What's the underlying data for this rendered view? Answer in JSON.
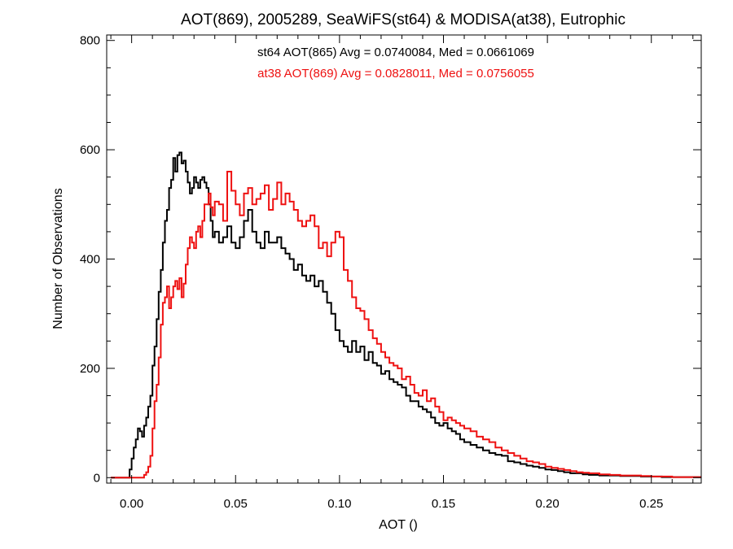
{
  "chart_data": {
    "type": "line",
    "title": "AOT(869), 2005289, SeaWiFS(st64) & MODISA(at38), Eutrophic",
    "xlabel": "AOT ()",
    "ylabel": "Number of Observations",
    "xlim": [
      -0.012,
      0.274
    ],
    "ylim": [
      -10,
      810
    ],
    "xticks": [
      0.0,
      0.05,
      0.1,
      0.15,
      0.2,
      0.25
    ],
    "xtick_labels": [
      "0.00",
      "0.05",
      "0.10",
      "0.15",
      "0.20",
      "0.25"
    ],
    "yticks": [
      0,
      200,
      400,
      600,
      800
    ],
    "ytick_labels": [
      "0",
      "200",
      "400",
      "600",
      "800"
    ],
    "grid": false,
    "annotations": [
      {
        "text": "st64 AOT(865) Avg = 0.0740084, Med = 0.0661069",
        "color": "#000000"
      },
      {
        "text": "at38 AOT(869) Avg = 0.0828011, Med = 0.0756055",
        "color": "#ee1111"
      }
    ],
    "series": [
      {
        "color": "#000000",
        "x": [
          -0.01,
          -0.002,
          -0.001,
          0.0,
          0.001,
          0.002,
          0.003,
          0.004,
          0.005,
          0.006,
          0.007,
          0.008,
          0.009,
          0.01,
          0.011,
          0.012,
          0.013,
          0.014,
          0.015,
          0.016,
          0.017,
          0.018,
          0.019,
          0.02,
          0.021,
          0.022,
          0.023,
          0.024,
          0.025,
          0.026,
          0.027,
          0.028,
          0.029,
          0.03,
          0.031,
          0.032,
          0.033,
          0.034,
          0.035,
          0.036,
          0.037,
          0.038,
          0.039,
          0.04,
          0.042,
          0.044,
          0.046,
          0.048,
          0.05,
          0.052,
          0.054,
          0.056,
          0.058,
          0.06,
          0.062,
          0.064,
          0.066,
          0.068,
          0.07,
          0.072,
          0.074,
          0.076,
          0.078,
          0.08,
          0.082,
          0.084,
          0.086,
          0.088,
          0.09,
          0.092,
          0.094,
          0.096,
          0.098,
          0.1,
          0.102,
          0.104,
          0.106,
          0.108,
          0.11,
          0.112,
          0.114,
          0.116,
          0.118,
          0.12,
          0.122,
          0.124,
          0.126,
          0.128,
          0.13,
          0.132,
          0.134,
          0.136,
          0.138,
          0.14,
          0.142,
          0.144,
          0.146,
          0.148,
          0.15,
          0.152,
          0.154,
          0.156,
          0.158,
          0.16,
          0.163,
          0.166,
          0.169,
          0.172,
          0.175,
          0.178,
          0.181,
          0.184,
          0.187,
          0.19,
          0.193,
          0.196,
          0.199,
          0.202,
          0.205,
          0.208,
          0.211,
          0.214,
          0.217,
          0.22,
          0.225,
          0.23,
          0.235,
          0.24,
          0.245,
          0.25,
          0.255,
          0.26,
          0.265,
          0.27
        ],
        "y": [
          0,
          0,
          15,
          35,
          55,
          70,
          90,
          85,
          75,
          95,
          110,
          130,
          150,
          205,
          240,
          290,
          340,
          380,
          430,
          470,
          490,
          530,
          545,
          585,
          560,
          590,
          595,
          575,
          580,
          560,
          540,
          520,
          530,
          550,
          540,
          530,
          545,
          550,
          540,
          530,
          500,
          470,
          440,
          450,
          430,
          440,
          460,
          430,
          420,
          440,
          470,
          490,
          450,
          430,
          420,
          450,
          430,
          430,
          440,
          420,
          410,
          400,
          380,
          390,
          370,
          360,
          370,
          350,
          360,
          340,
          320,
          300,
          270,
          250,
          240,
          230,
          250,
          230,
          240,
          215,
          230,
          210,
          205,
          190,
          195,
          180,
          175,
          170,
          165,
          150,
          140,
          140,
          130,
          125,
          120,
          110,
          100,
          95,
          100,
          90,
          85,
          80,
          70,
          65,
          60,
          55,
          50,
          45,
          42,
          40,
          30,
          28,
          25,
          22,
          20,
          18,
          15,
          14,
          12,
          10,
          8,
          8,
          6,
          5,
          4,
          4,
          3,
          3,
          2,
          2,
          1,
          1,
          1,
          1
        ]
      },
      {
        "color": "#ee1111",
        "x": [
          -0.01,
          0.005,
          0.006,
          0.007,
          0.008,
          0.009,
          0.01,
          0.011,
          0.012,
          0.013,
          0.014,
          0.015,
          0.016,
          0.017,
          0.018,
          0.019,
          0.02,
          0.021,
          0.022,
          0.023,
          0.024,
          0.025,
          0.026,
          0.027,
          0.028,
          0.029,
          0.03,
          0.031,
          0.032,
          0.033,
          0.034,
          0.035,
          0.036,
          0.037,
          0.038,
          0.039,
          0.04,
          0.042,
          0.044,
          0.046,
          0.048,
          0.05,
          0.052,
          0.054,
          0.056,
          0.058,
          0.06,
          0.062,
          0.064,
          0.066,
          0.068,
          0.07,
          0.072,
          0.074,
          0.076,
          0.078,
          0.08,
          0.082,
          0.084,
          0.086,
          0.088,
          0.09,
          0.092,
          0.094,
          0.096,
          0.098,
          0.1,
          0.102,
          0.104,
          0.106,
          0.108,
          0.11,
          0.112,
          0.114,
          0.116,
          0.118,
          0.12,
          0.122,
          0.124,
          0.126,
          0.128,
          0.13,
          0.132,
          0.134,
          0.136,
          0.138,
          0.14,
          0.142,
          0.144,
          0.146,
          0.148,
          0.15,
          0.152,
          0.154,
          0.156,
          0.158,
          0.16,
          0.163,
          0.166,
          0.169,
          0.172,
          0.175,
          0.178,
          0.181,
          0.184,
          0.187,
          0.19,
          0.193,
          0.196,
          0.199,
          0.202,
          0.205,
          0.208,
          0.211,
          0.214,
          0.217,
          0.22,
          0.225,
          0.23,
          0.235,
          0.24,
          0.245,
          0.25,
          0.255,
          0.26,
          0.265,
          0.27
        ],
        "y": [
          0,
          0,
          5,
          10,
          20,
          40,
          90,
          140,
          170,
          220,
          280,
          320,
          330,
          350,
          310,
          330,
          350,
          360,
          345,
          365,
          330,
          355,
          390,
          420,
          440,
          430,
          420,
          450,
          460,
          440,
          470,
          500,
          500,
          520,
          495,
          480,
          505,
          500,
          470,
          560,
          525,
          500,
          480,
          520,
          530,
          500,
          510,
          520,
          535,
          490,
          510,
          540,
          500,
          520,
          505,
          490,
          470,
          460,
          470,
          480,
          460,
          420,
          430,
          405,
          430,
          450,
          440,
          380,
          360,
          330,
          310,
          305,
          290,
          270,
          255,
          245,
          230,
          220,
          210,
          205,
          200,
          180,
          185,
          170,
          155,
          150,
          160,
          140,
          145,
          130,
          120,
          105,
          110,
          105,
          100,
          95,
          90,
          85,
          75,
          70,
          65,
          55,
          50,
          45,
          40,
          35,
          30,
          28,
          25,
          20,
          18,
          16,
          14,
          12,
          10,
          9,
          8,
          6,
          5,
          4,
          4,
          3,
          2,
          2,
          1,
          1,
          1
        ]
      }
    ]
  }
}
